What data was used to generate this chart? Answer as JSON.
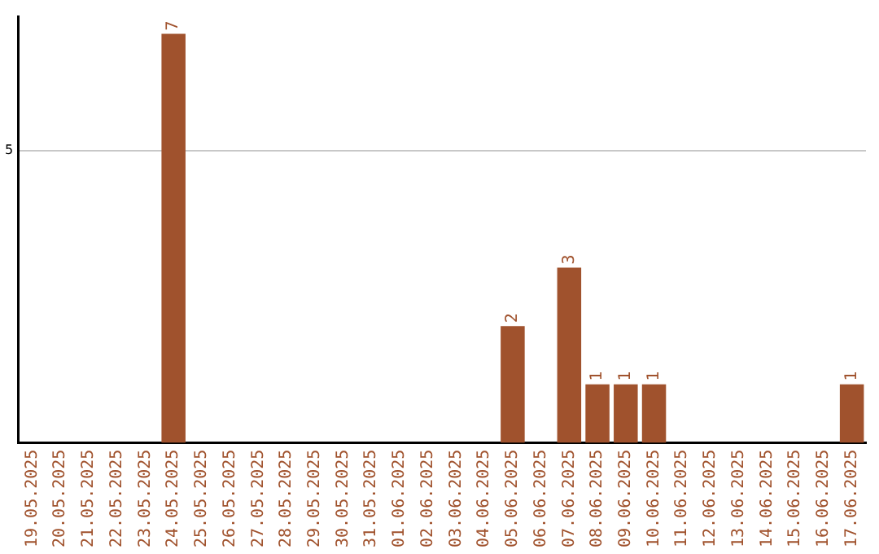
{
  "chart_data": {
    "type": "bar",
    "categories": [
      "19.05.2025",
      "20.05.2025",
      "21.05.2025",
      "22.05.2025",
      "23.05.2025",
      "24.05.2025",
      "25.05.2025",
      "26.05.2025",
      "27.05.2025",
      "28.05.2025",
      "29.05.2025",
      "30.05.2025",
      "31.05.2025",
      "01.06.2025",
      "02.06.2025",
      "03.06.2025",
      "04.06.2025",
      "05.06.2025",
      "06.06.2025",
      "07.06.2025",
      "08.06.2025",
      "09.06.2025",
      "10.06.2025",
      "11.06.2025",
      "12.06.2025",
      "13.06.2025",
      "14.06.2025",
      "15.06.2025",
      "16.06.2025",
      "17.06.2025"
    ],
    "values": [
      0,
      0,
      0,
      0,
      0,
      7,
      0,
      0,
      0,
      0,
      0,
      0,
      0,
      0,
      0,
      0,
      0,
      2,
      0,
      3,
      1,
      1,
      1,
      0,
      0,
      0,
      0,
      0,
      0,
      1
    ],
    "value_labels": [
      null,
      null,
      null,
      null,
      null,
      "7",
      null,
      null,
      null,
      null,
      null,
      null,
      null,
      null,
      null,
      null,
      null,
      "2",
      null,
      "3",
      "1",
      "1",
      "1",
      null,
      null,
      null,
      null,
      null,
      null,
      "1"
    ],
    "color": "#a0522d",
    "ylim": [
      0,
      7.3
    ],
    "yticks": [
      5
    ],
    "grid": "y",
    "legend": false
  }
}
